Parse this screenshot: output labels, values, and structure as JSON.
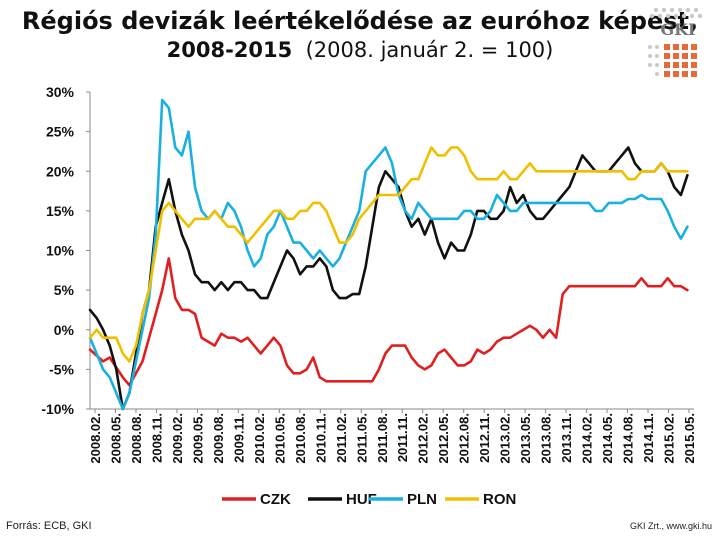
{
  "title": {
    "line1": "Régiós devizák leértékelődése az euróhoz képest,",
    "line2_bold": "2008-2015",
    "line2_rest": "(2008. január 2. = 100)"
  },
  "logo": {
    "text": "GKI"
  },
  "footer": {
    "source": "Forrás: ECB, GKI",
    "credit": "GKI Zrt., www.gki.hu"
  },
  "chart_data": {
    "type": "line",
    "yticks": [
      "30%",
      "25%",
      "20%",
      "15%",
      "10%",
      "5%",
      "0%",
      "-5%",
      "-10%"
    ],
    "ylim": [
      -10,
      30
    ],
    "xlim": [
      0,
      92
    ],
    "xticks": [
      "2008.02.",
      "2008.05.",
      "2008.08.",
      "2008.11.",
      "2009.02.",
      "2009.05.",
      "2009.08.",
      "2009.11.",
      "2010.02.",
      "2010.05.",
      "2010.08.",
      "2010.11.",
      "2011.02.",
      "2011.05.",
      "2011.08.",
      "2011.11.",
      "2012.02.",
      "2012.05.",
      "2012.08.",
      "2012.11.",
      "2013.02.",
      "2013.05.",
      "2013.08.",
      "2013.11.",
      "2014.02.",
      "2014.05.",
      "2014.08.",
      "2014.11.",
      "2015.02.",
      "2015.05."
    ],
    "legend_position": "bottom",
    "grid": false,
    "series": [
      {
        "name": "CZK",
        "color": "#e02020",
        "x": [
          0,
          2,
          3,
          5,
          6,
          7,
          8,
          9,
          10,
          11,
          12,
          13,
          14,
          15,
          16,
          17,
          19,
          20,
          21,
          22,
          23,
          24,
          25,
          26,
          27,
          28,
          29,
          30,
          31,
          32,
          33,
          34,
          35,
          36,
          37,
          38,
          39,
          40,
          41,
          42,
          43,
          44,
          45,
          46,
          47,
          48,
          49,
          50,
          51,
          52,
          53,
          54,
          55,
          56,
          57,
          58,
          59,
          60,
          61,
          62,
          63,
          64,
          65,
          66,
          67,
          68,
          69,
          70,
          71,
          72,
          73,
          74,
          75,
          76,
          77,
          78,
          79,
          80,
          81,
          82,
          83,
          84,
          85,
          86,
          87,
          88,
          89,
          90,
          91
        ],
        "y": [
          -2.5,
          -4,
          -3.5,
          -6,
          -7,
          -5.5,
          -4,
          -1,
          2,
          5,
          9,
          4,
          2.5,
          2.5,
          2,
          -1,
          -2,
          -0.5,
          -1,
          -1,
          -1.5,
          -1,
          -2,
          -3,
          -2,
          -1,
          -2,
          -4.5,
          -5.5,
          -5.5,
          -5,
          -3.5,
          -6,
          -6.5,
          -6.5,
          -6.5,
          -6.5,
          -6.5,
          -6.5,
          -6.5,
          -6.5,
          -5,
          -3,
          -2,
          -2,
          -2,
          -3.5,
          -4.5,
          -5,
          -4.5,
          -3,
          -2.5,
          -3.5,
          -4.5,
          -4.5,
          -4,
          -2.5,
          -3,
          -2.5,
          -1.5,
          -1,
          -1,
          -0.5,
          0,
          0.5,
          0,
          -1,
          0,
          -1,
          4.5,
          5.5,
          5.5,
          5.5,
          5.5,
          5.5,
          5.5,
          5.5,
          5.5,
          5.5,
          5.5,
          5.5,
          6.5,
          5.5,
          5.5,
          5.5,
          6.5,
          5.5,
          5.5,
          5
        ]
      },
      {
        "name": "HUF",
        "color": "#111111",
        "x": [
          0,
          1,
          2,
          3,
          4,
          5,
          6,
          7,
          8,
          9,
          10,
          11,
          12,
          13,
          14,
          15,
          16,
          17,
          18,
          19,
          20,
          21,
          22,
          23,
          24,
          25,
          26,
          27,
          28,
          29,
          30,
          31,
          32,
          33,
          34,
          35,
          36,
          37,
          38,
          39,
          40,
          41,
          42,
          43,
          44,
          45,
          46,
          47,
          48,
          49,
          50,
          51,
          52,
          53,
          54,
          55,
          56,
          57,
          58,
          59,
          60,
          61,
          62,
          63,
          64,
          65,
          66,
          67,
          68,
          69,
          70,
          71,
          72,
          73,
          74,
          75,
          76,
          77,
          78,
          79,
          80,
          81,
          82,
          83,
          84,
          85,
          86,
          87,
          88,
          89,
          90,
          91
        ],
        "y": [
          2.5,
          1.5,
          0,
          -2,
          -5,
          -10,
          -8,
          -3,
          2,
          5,
          13,
          16,
          19,
          15,
          12,
          10,
          7,
          6,
          6,
          5,
          6,
          5,
          6,
          6,
          5,
          5,
          4,
          4,
          6,
          8,
          10,
          9,
          7,
          8,
          8,
          9,
          8,
          5,
          4,
          4,
          4.5,
          4.5,
          8,
          13,
          18,
          20,
          19,
          18,
          15,
          13,
          14,
          12,
          14,
          11,
          9,
          11,
          10,
          10,
          12,
          15,
          15,
          14,
          14,
          15,
          18,
          16,
          17,
          15,
          14,
          14,
          15,
          16,
          17,
          18,
          20,
          22,
          21,
          20,
          20,
          20,
          21,
          22,
          23,
          21,
          20,
          20,
          20,
          21,
          20,
          18,
          17,
          19.5
        ]
      },
      {
        "name": "PLN",
        "color": "#1ab0e0",
        "x": [
          0,
          1,
          2,
          3,
          4,
          5,
          6,
          7,
          8,
          9,
          10,
          11,
          12,
          13,
          14,
          15,
          16,
          17,
          18,
          19,
          20,
          21,
          22,
          23,
          24,
          25,
          26,
          27,
          28,
          29,
          30,
          31,
          32,
          33,
          34,
          35,
          36,
          37,
          38,
          39,
          40,
          41,
          42,
          43,
          44,
          45,
          46,
          47,
          48,
          49,
          50,
          51,
          52,
          53,
          54,
          55,
          56,
          57,
          58,
          59,
          60,
          61,
          62,
          63,
          64,
          65,
          66,
          67,
          68,
          69,
          70,
          71,
          72,
          73,
          74,
          75,
          76,
          77,
          78,
          79,
          80,
          81,
          82,
          83,
          84,
          85,
          86,
          87,
          88,
          89,
          90,
          91
        ],
        "y": [
          -1,
          -3,
          -5,
          -6,
          -8,
          -10,
          -8,
          -4,
          0,
          4,
          12,
          29,
          28,
          23,
          22,
          25,
          18,
          15,
          14,
          15,
          14,
          16,
          15,
          13,
          10,
          8,
          9,
          12,
          13,
          15,
          13,
          11,
          11,
          10,
          9,
          10,
          9,
          8,
          9,
          11,
          13,
          15,
          20,
          21,
          22,
          23,
          21,
          17,
          15,
          14,
          16,
          15,
          14,
          14,
          14,
          14,
          14,
          15,
          15,
          14,
          14,
          15,
          17,
          16,
          15,
          15,
          16,
          16,
          16,
          16,
          16,
          16,
          16,
          16,
          16,
          16,
          16,
          15,
          15,
          16,
          16,
          16,
          16.5,
          16.5,
          17,
          16.5,
          16.5,
          16.5,
          15,
          13,
          11.5,
          13
        ]
      },
      {
        "name": "RON",
        "color": "#f0c000",
        "x": [
          0,
          1,
          2,
          3,
          4,
          5,
          6,
          7,
          8,
          9,
          10,
          11,
          12,
          13,
          14,
          15,
          16,
          17,
          18,
          19,
          20,
          21,
          22,
          23,
          24,
          25,
          26,
          27,
          28,
          29,
          30,
          31,
          32,
          33,
          34,
          35,
          36,
          37,
          38,
          39,
          40,
          41,
          42,
          43,
          44,
          45,
          46,
          47,
          48,
          49,
          50,
          51,
          52,
          53,
          54,
          55,
          56,
          57,
          58,
          59,
          60,
          61,
          62,
          63,
          64,
          65,
          66,
          67,
          68,
          69,
          70,
          71,
          72,
          73,
          74,
          75,
          76,
          77,
          78,
          79,
          80,
          81,
          82,
          83,
          84,
          85,
          86,
          87,
          88,
          89,
          90,
          91
        ],
        "y": [
          -1,
          0,
          -1,
          -1,
          -1,
          -3,
          -4,
          -2,
          2,
          5,
          10,
          15,
          16,
          15,
          14,
          13,
          14,
          14,
          14,
          15,
          14,
          13,
          13,
          12,
          11,
          12,
          13,
          14,
          15,
          15,
          14,
          14,
          15,
          15,
          16,
          16,
          15,
          13,
          11,
          11,
          12,
          14,
          15,
          16,
          17,
          17,
          17,
          17,
          18,
          19,
          19,
          21,
          23,
          22,
          22,
          23,
          23,
          22,
          20,
          19,
          19,
          19,
          19,
          20,
          19,
          19,
          20,
          21,
          20,
          20,
          20,
          20,
          20,
          20,
          20,
          20,
          20,
          20,
          20,
          20,
          20,
          20,
          19,
          19,
          20,
          20,
          20,
          21,
          20,
          20,
          20,
          20
        ]
      }
    ]
  }
}
